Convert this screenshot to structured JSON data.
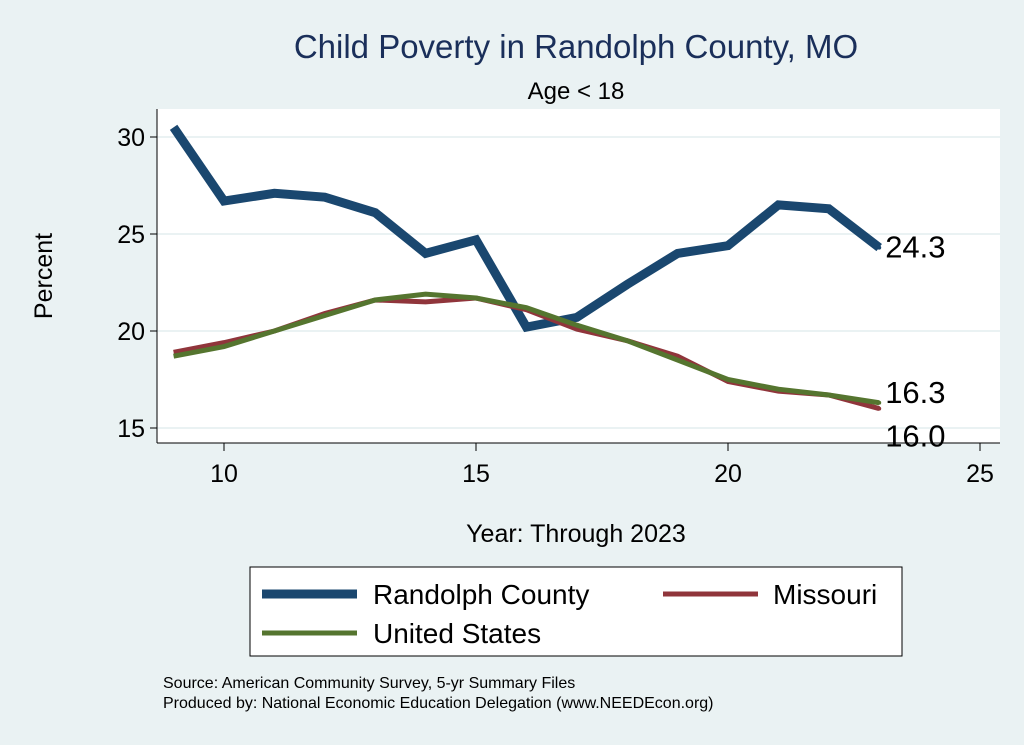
{
  "chart_data": {
    "type": "line",
    "title": "Child Poverty in Randolph County, MO",
    "subtitle": "Age < 18",
    "xlabel": "Year: Through 2023",
    "ylabel": "Percent",
    "xlim": [
      8.3,
      25.5
    ],
    "ylim": [
      14.2,
      31.4
    ],
    "xticks": [
      10,
      15,
      20,
      25
    ],
    "yticks": [
      15,
      20,
      25,
      30
    ],
    "grid": true,
    "legend_position": "bottom",
    "x": [
      9,
      10,
      11,
      12,
      13,
      14,
      15,
      16,
      17,
      18,
      19,
      20,
      21,
      22,
      23
    ],
    "series": [
      {
        "name": "Randolph County",
        "color": "#1a476f",
        "values": [
          30.5,
          26.7,
          27.1,
          26.9,
          26.1,
          24.0,
          24.7,
          20.2,
          20.7,
          22.4,
          24.0,
          24.4,
          26.5,
          26.3,
          24.3
        ],
        "end_label": "24.3"
      },
      {
        "name": "Missouri",
        "color": "#90353b",
        "values": [
          18.9,
          19.4,
          20.0,
          20.9,
          21.6,
          21.5,
          21.7,
          21.1,
          20.1,
          19.5,
          18.7,
          17.4,
          16.9,
          16.7,
          16.0
        ],
        "end_label": "16.0"
      },
      {
        "name": "United States",
        "color": "#55752f",
        "values": [
          18.7,
          19.2,
          20.0,
          20.8,
          21.6,
          21.9,
          21.7,
          21.2,
          20.3,
          19.5,
          18.5,
          17.5,
          17.0,
          16.7,
          16.3
        ],
        "end_label": "16.3"
      }
    ]
  },
  "notes": {
    "source": "Source: American Community Survey, 5-yr Summary Files",
    "produced": "Produced by: National Economic Education Delegation (www.NEEDEcon.org)"
  },
  "colors": {
    "title": "#1a2f5a",
    "background": "#eaf2f3",
    "grid": "#eaf2f3"
  }
}
